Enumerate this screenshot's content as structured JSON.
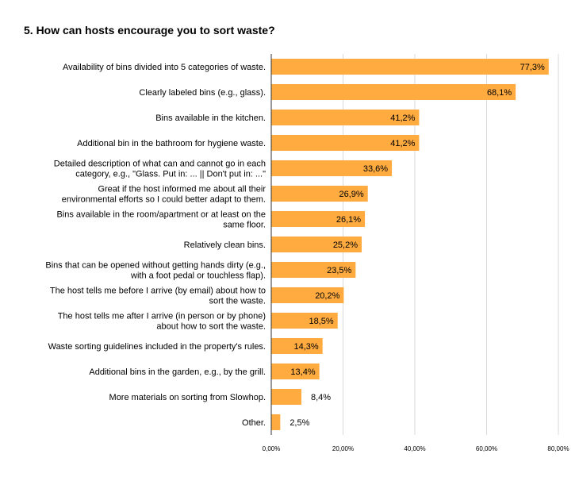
{
  "chart_data": {
    "type": "bar",
    "orientation": "horizontal",
    "title": "5. How can hosts encourage you to sort waste?",
    "categories": [
      [
        "Availability of bins divided into 5 categories of waste."
      ],
      [
        "Clearly labeled bins (e.g., glass)."
      ],
      [
        "Bins available in the kitchen."
      ],
      [
        "Additional bin in the bathroom for hygiene waste."
      ],
      [
        "Detailed description of what can and cannot go in each",
        "category, e.g., \"Glass. Put in: ... || Don't put in: ...\""
      ],
      [
        "Great if the host informed me about all their",
        "environmental efforts so I could better adapt to them."
      ],
      [
        "Bins available in the room/apartment or at least on the",
        "same floor."
      ],
      [
        "Relatively clean bins."
      ],
      [
        "Bins that can be opened without getting hands dirty (e.g.,",
        "with a foot pedal or touchless flap)."
      ],
      [
        "The host tells me before I arrive (by email) about how to",
        "sort the waste."
      ],
      [
        "The host tells me after I arrive (in person or by phone)",
        "about how to sort the waste."
      ],
      [
        "Waste sorting guidelines included in the property's rules."
      ],
      [
        "Additional bins in the garden, e.g., by the grill."
      ],
      [
        "More materials on sorting from Slowhop."
      ],
      [
        "Other."
      ]
    ],
    "values": [
      77.3,
      68.1,
      41.2,
      41.2,
      33.6,
      26.9,
      26.1,
      25.2,
      23.5,
      20.2,
      18.5,
      14.3,
      13.4,
      8.4,
      2.5
    ],
    "data_labels": [
      "77,3%",
      "68,1%",
      "41,2%",
      "41,2%",
      "33,6%",
      "26,9%",
      "26,1%",
      "25,2%",
      "23,5%",
      "20,2%",
      "18,5%",
      "14,3%",
      "13,4%",
      "8,4%",
      "2,5%"
    ],
    "xlim": [
      0,
      80
    ],
    "xticks": [
      0,
      20,
      40,
      60,
      80
    ],
    "xtick_labels": [
      "0,00%",
      "20,00%",
      "40,00%",
      "60,00%",
      "80,00%"
    ],
    "xlabel": "",
    "ylabel": "",
    "grid": true,
    "legend": "none",
    "colors": {
      "bar": "#FFAB40",
      "grid": "#d9d9d9",
      "axis": "#333333",
      "text": "#000000"
    }
  }
}
